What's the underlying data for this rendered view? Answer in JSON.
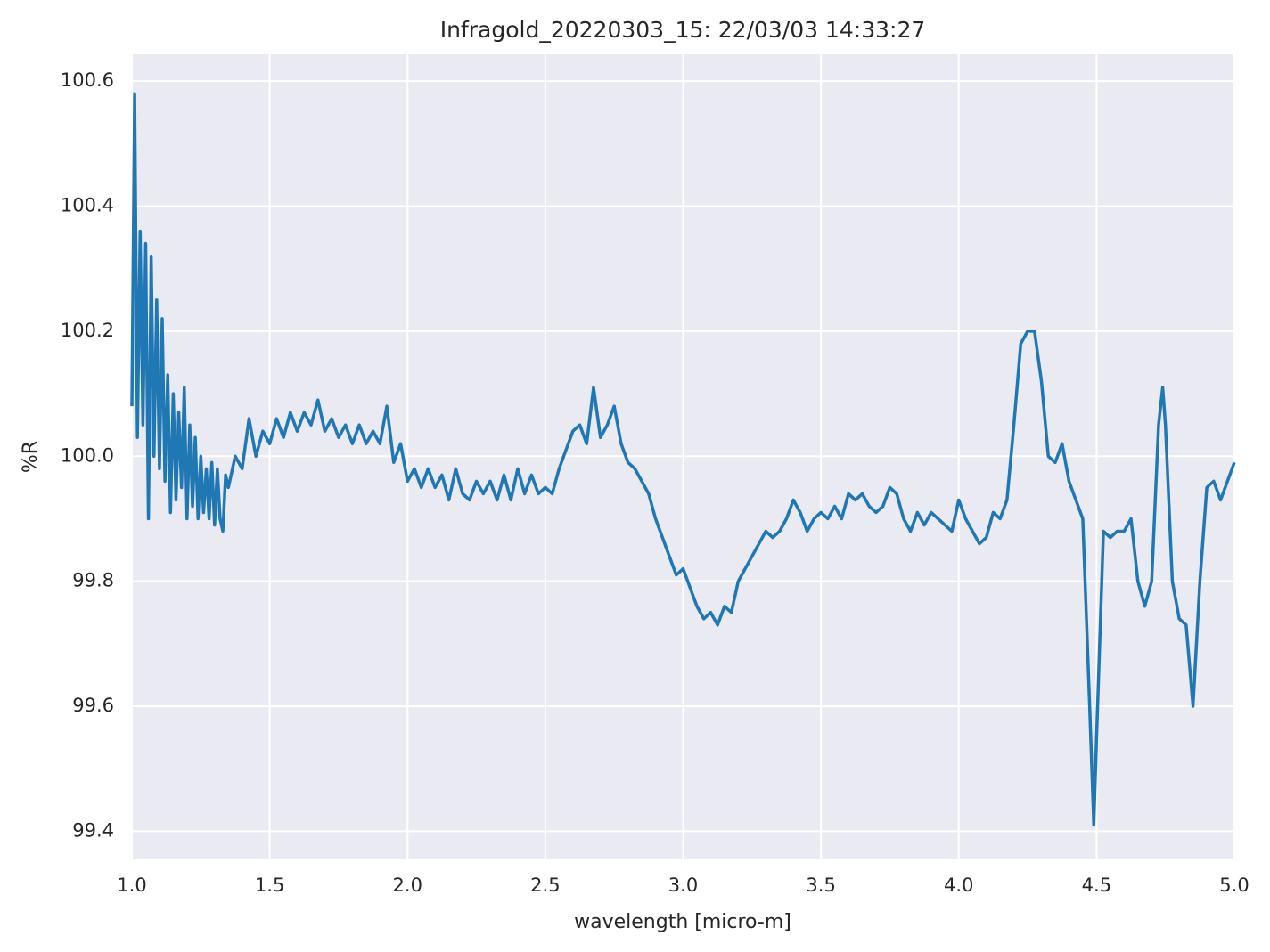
{
  "chart_data": {
    "type": "line",
    "title": "Infragold_20220303_15:  22/03/03 14:33:27",
    "x_label": "wavelength [micro-m]",
    "y_label": "%R",
    "xlim": [
      1.0,
      5.0
    ],
    "ylim": [
      99.355,
      100.643
    ],
    "xticks": [
      {
        "value": 1,
        "label": "1.0"
      },
      1.5,
      {
        "value": 2,
        "label": "2.0"
      },
      2.5,
      {
        "value": 3,
        "label": "3.0"
      },
      3.5,
      {
        "value": 4,
        "label": "4.0"
      },
      4.5,
      {
        "value": 5,
        "label": "5.0"
      }
    ],
    "yticks": [
      99.4,
      99.6,
      99.8,
      {
        "value": 100,
        "label": "100.0"
      },
      100.2,
      100.4,
      100.6
    ],
    "grid": true,
    "background": "#eaeaf2",
    "x": [
      1.0,
      1.01,
      1.02,
      1.03,
      1.04,
      1.05,
      1.06,
      1.07,
      1.08,
      1.09,
      1.1,
      1.11,
      1.12,
      1.13,
      1.14,
      1.15,
      1.16,
      1.17,
      1.18,
      1.19,
      1.2,
      1.21,
      1.22,
      1.23,
      1.24,
      1.25,
      1.26,
      1.27,
      1.28,
      1.29,
      1.3,
      1.31,
      1.32,
      1.33,
      1.34,
      1.35,
      1.375,
      1.4,
      1.425,
      1.45,
      1.475,
      1.5,
      1.525,
      1.55,
      1.575,
      1.6,
      1.625,
      1.65,
      1.675,
      1.7,
      1.725,
      1.75,
      1.775,
      1.8,
      1.825,
      1.85,
      1.875,
      1.9,
      1.925,
      1.95,
      1.975,
      2.0,
      2.025,
      2.05,
      2.075,
      2.1,
      2.125,
      2.15,
      2.175,
      2.2,
      2.225,
      2.25,
      2.275,
      2.3,
      2.325,
      2.35,
      2.375,
      2.4,
      2.425,
      2.45,
      2.475,
      2.5,
      2.525,
      2.55,
      2.575,
      2.6,
      2.625,
      2.65,
      2.675,
      2.7,
      2.725,
      2.75,
      2.775,
      2.8,
      2.825,
      2.85,
      2.875,
      2.9,
      2.925,
      2.95,
      2.975,
      3.0,
      3.025,
      3.05,
      3.075,
      3.1,
      3.125,
      3.15,
      3.175,
      3.2,
      3.225,
      3.25,
      3.275,
      3.3,
      3.325,
      3.35,
      3.375,
      3.4,
      3.425,
      3.45,
      3.475,
      3.5,
      3.525,
      3.55,
      3.575,
      3.6,
      3.625,
      3.65,
      3.675,
      3.7,
      3.725,
      3.75,
      3.775,
      3.8,
      3.825,
      3.85,
      3.875,
      3.9,
      3.925,
      3.95,
      3.975,
      4.0,
      4.025,
      4.05,
      4.075,
      4.1,
      4.125,
      4.15,
      4.175,
      4.2,
      4.225,
      4.25,
      4.275,
      4.3,
      4.325,
      4.35,
      4.375,
      4.4,
      4.425,
      4.45,
      4.475,
      4.49,
      4.5,
      4.525,
      4.55,
      4.575,
      4.6,
      4.625,
      4.65,
      4.675,
      4.7,
      4.725,
      4.74,
      4.75,
      4.775,
      4.8,
      4.825,
      4.85,
      4.875,
      4.9,
      4.925,
      4.95,
      4.975,
      5.0
    ],
    "series": [
      {
        "name": "%R",
        "color": "#1f77b4",
        "values": [
          100.08,
          100.58,
          100.03,
          100.36,
          100.05,
          100.34,
          99.9,
          100.32,
          100.0,
          100.25,
          99.98,
          100.22,
          99.96,
          100.13,
          99.91,
          100.1,
          99.93,
          100.07,
          99.95,
          100.11,
          99.9,
          100.05,
          99.92,
          100.03,
          99.9,
          100.0,
          99.91,
          99.98,
          99.9,
          99.99,
          99.89,
          99.98,
          99.9,
          99.88,
          99.97,
          99.95,
          100.0,
          99.98,
          100.06,
          100.0,
          100.04,
          100.02,
          100.06,
          100.03,
          100.07,
          100.04,
          100.07,
          100.05,
          100.09,
          100.04,
          100.06,
          100.03,
          100.05,
          100.02,
          100.05,
          100.02,
          100.04,
          100.02,
          100.08,
          99.99,
          100.02,
          99.96,
          99.98,
          99.95,
          99.98,
          99.95,
          99.97,
          99.93,
          99.98,
          99.94,
          99.93,
          99.96,
          99.94,
          99.96,
          99.93,
          99.97,
          99.93,
          99.98,
          99.94,
          99.97,
          99.94,
          99.95,
          99.94,
          99.98,
          100.01,
          100.04,
          100.05,
          100.02,
          100.11,
          100.03,
          100.05,
          100.08,
          100.02,
          99.99,
          99.98,
          99.96,
          99.94,
          99.9,
          99.87,
          99.84,
          99.81,
          99.82,
          99.79,
          99.76,
          99.74,
          99.75,
          99.73,
          99.76,
          99.75,
          99.8,
          99.82,
          99.84,
          99.86,
          99.88,
          99.87,
          99.88,
          99.9,
          99.93,
          99.91,
          99.88,
          99.9,
          99.91,
          99.9,
          99.92,
          99.9,
          99.94,
          99.93,
          99.94,
          99.92,
          99.91,
          99.92,
          99.95,
          99.94,
          99.9,
          99.88,
          99.91,
          99.89,
          99.91,
          99.9,
          99.89,
          99.88,
          99.93,
          99.9,
          99.88,
          99.86,
          99.87,
          99.91,
          99.9,
          99.93,
          100.05,
          100.18,
          100.2,
          100.2,
          100.12,
          100.0,
          99.99,
          100.02,
          99.96,
          99.93,
          99.9,
          99.6,
          99.41,
          99.55,
          99.88,
          99.87,
          99.88,
          99.88,
          99.9,
          99.8,
          99.76,
          99.8,
          100.05,
          100.11,
          100.05,
          99.8,
          99.74,
          99.73,
          99.6,
          99.8,
          99.95,
          99.96,
          99.93,
          99.96,
          99.99
        ]
      }
    ]
  }
}
